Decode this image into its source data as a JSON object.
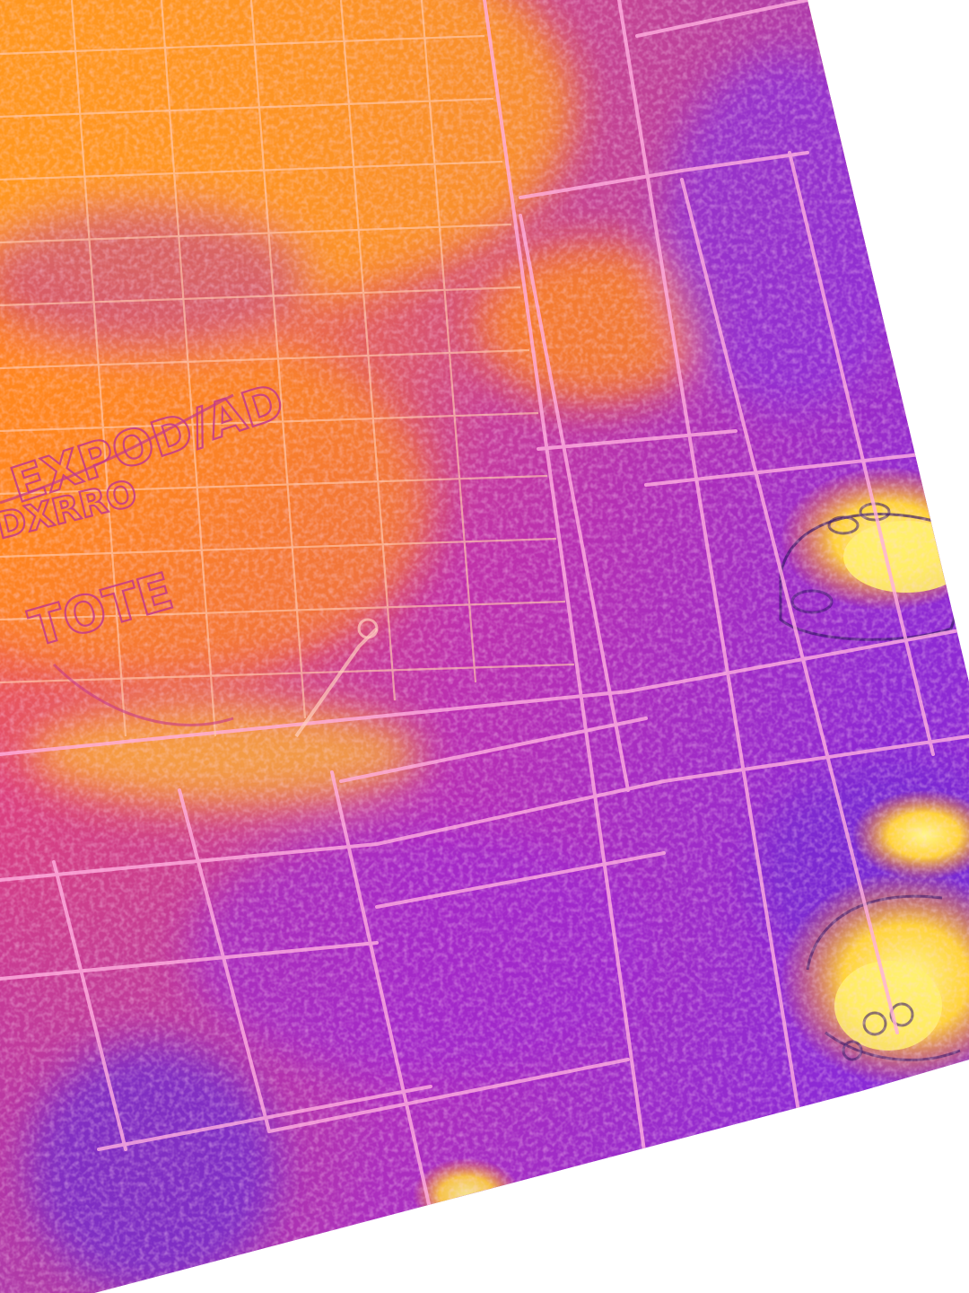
{
  "photo": {
    "palette": {
      "hot": "#fff06a",
      "warm": "#ffd23a",
      "orange": "#ff8a1c",
      "magenta": "#d22f8f",
      "purple": "#a126c8",
      "cold": "#6a2bd0",
      "edge": "#ffb0e0",
      "background": "#ffffff"
    },
    "handwriting": {
      "line_1": "EXPOD/AD",
      "line_2": "DXRRO",
      "line_3": "TOTE"
    },
    "icons": [
      "hand-print-icon",
      "boot-print-icon"
    ]
  }
}
